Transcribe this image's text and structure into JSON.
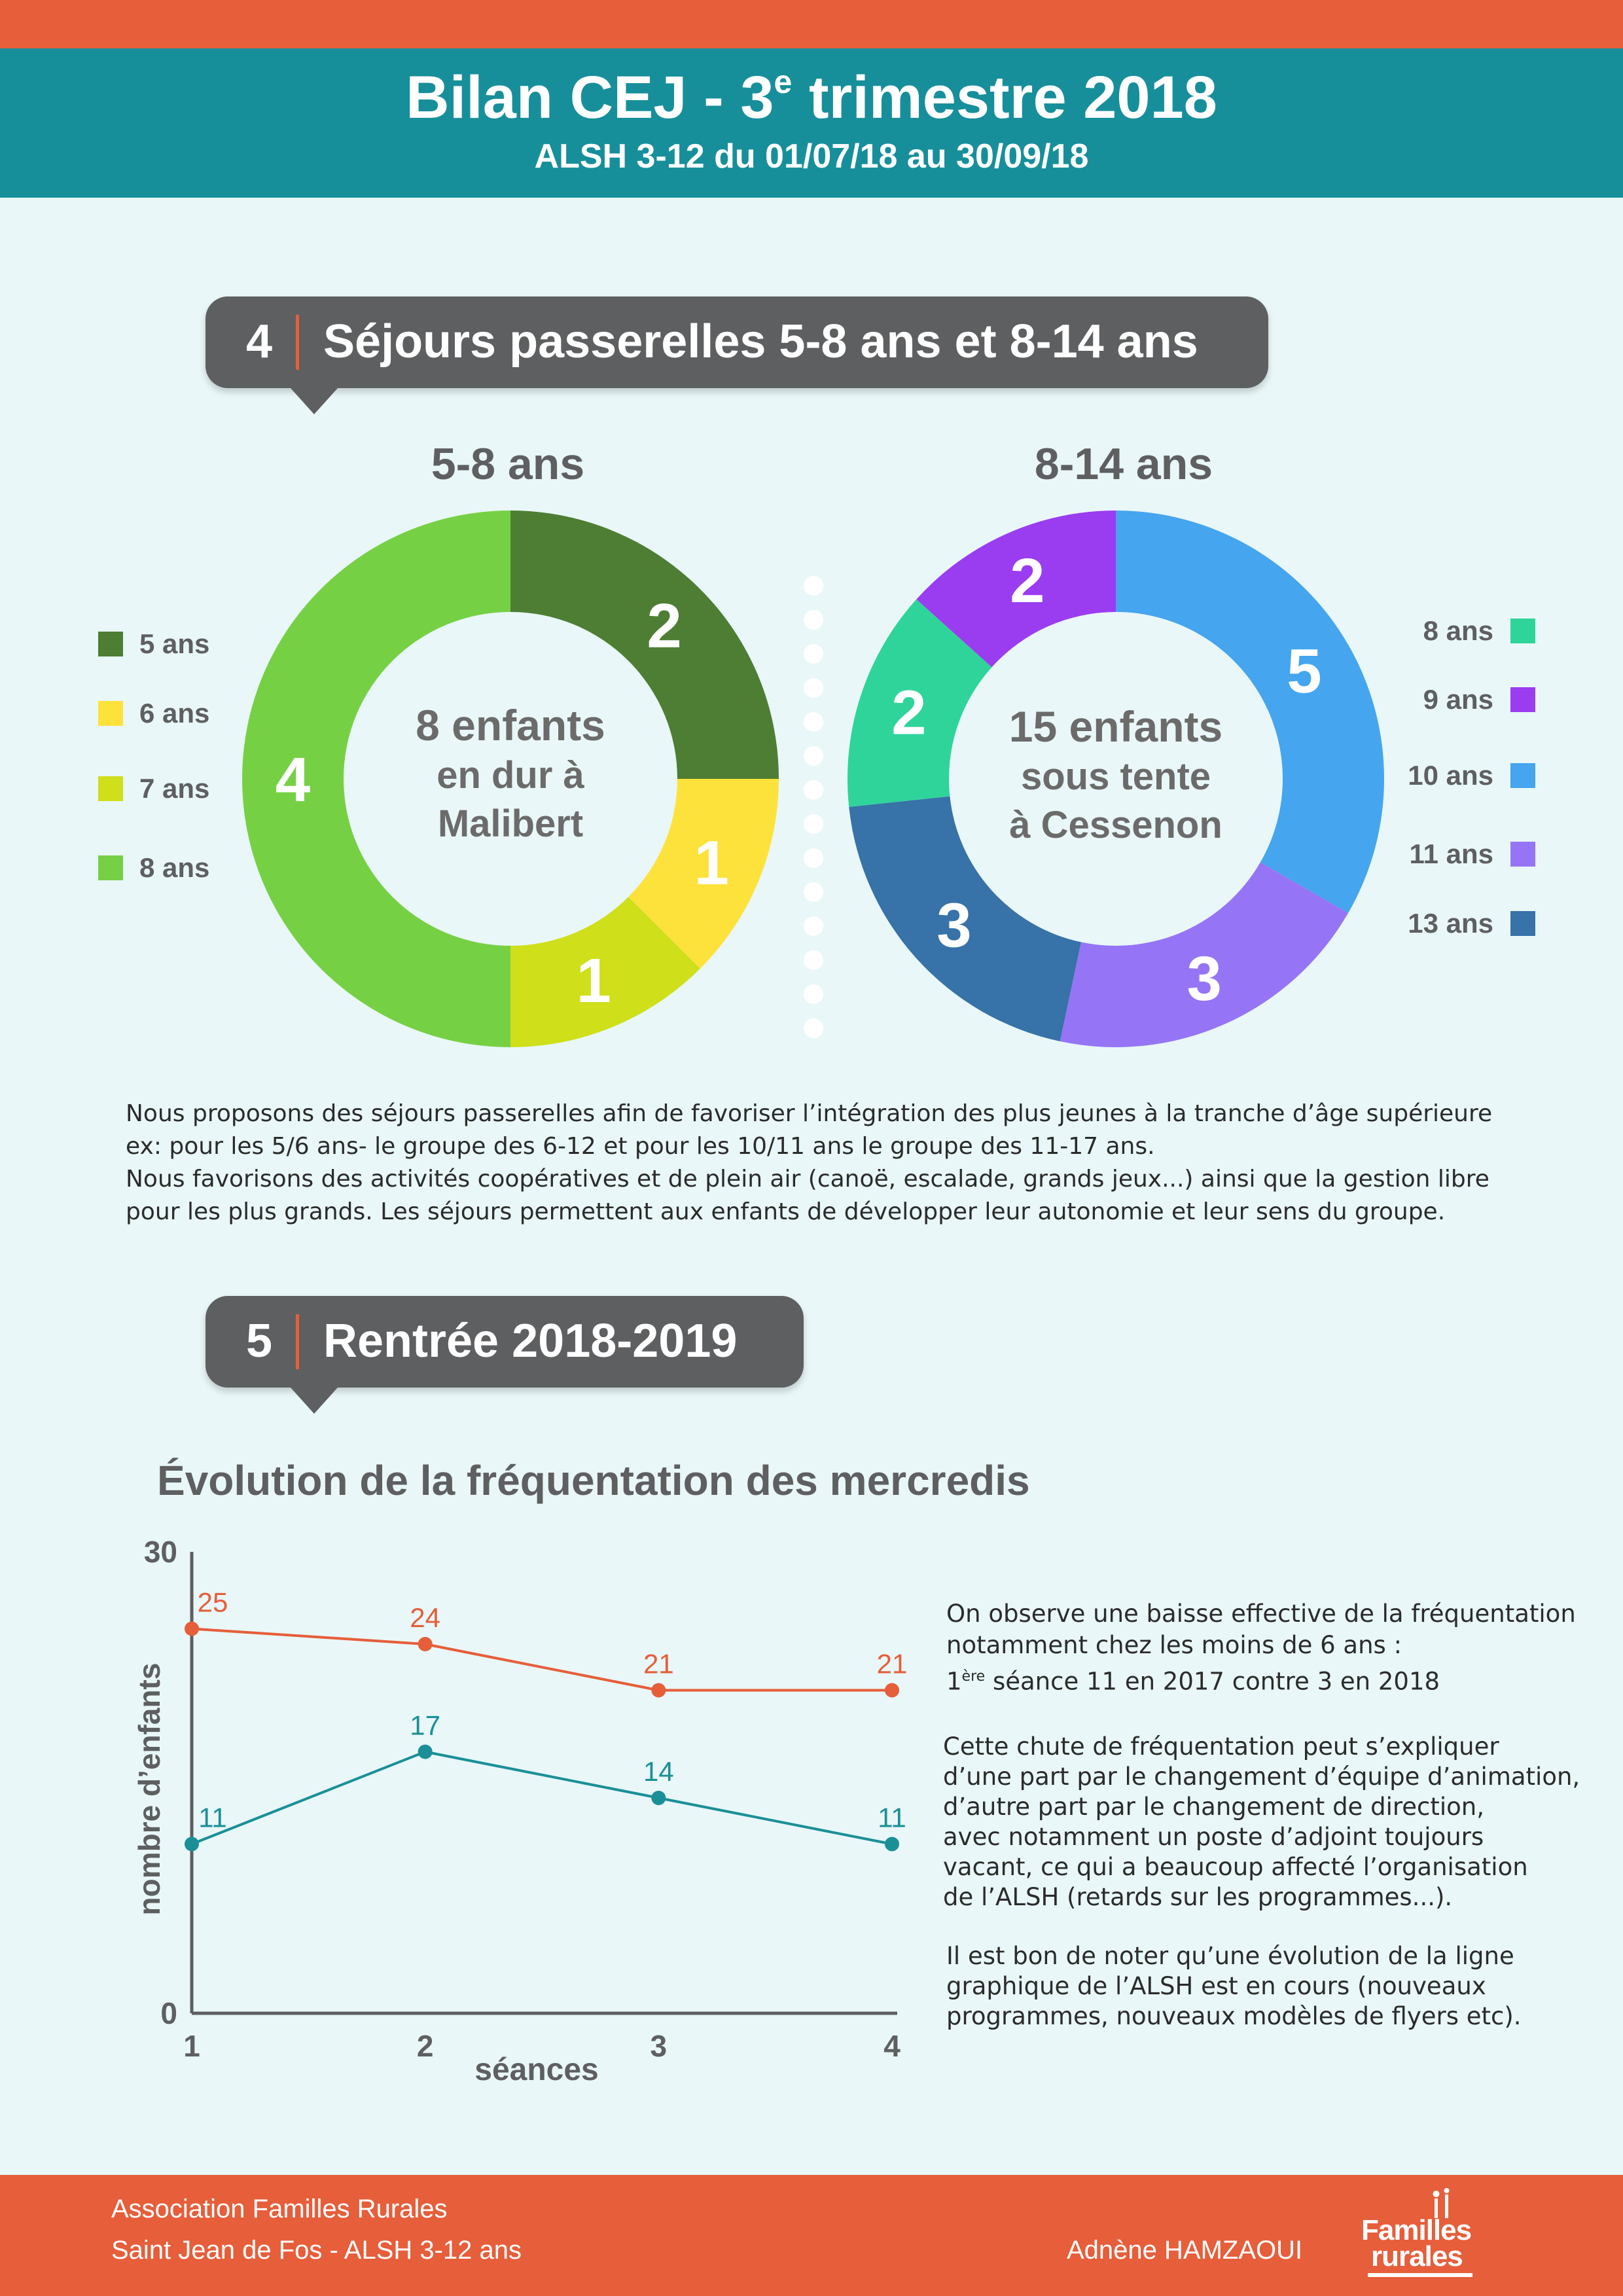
{
  "header": {
    "title_pre": "Bilan CEJ - 3",
    "title_sup": "e",
    "title_post": " trimestre 2018",
    "subtitle": "ALSH 3-12 du 01/07/18 au 30/09/18"
  },
  "section4": {
    "number": "4",
    "title": "Séjours passerelles 5-8 ans et 8-14 ans"
  },
  "section5": {
    "number": "5",
    "title": "Rentrée 2018-2019"
  },
  "donut_left_center": [
    "8 enfants",
    "en dur à",
    "Malibert"
  ],
  "donut_right_center": [
    "15 enfants",
    "sous tente",
    "à Cessenon"
  ],
  "paragraph_sejours": [
    "Nous proposons des séjours passerelles afin de favoriser l’intégration des plus jeunes à la tranche d’âge supérieure",
    "ex: pour les 5/6 ans- le groupe des 6-12 et pour les 10/11 ans le groupe des 11-17 ans.",
    "Nous favorisons des activités coopératives et de plein air (canoë, escalade, grands jeux...) ainsi que la gestion libre",
    "pour les plus grands. Les séjours permettent aux enfants de développer leur autonomie et leur sens du groupe."
  ],
  "right_notes": {
    "p1_line1": "On observe une baisse effective de la fréquentation",
    "p1_line2": "notamment chez les moins de 6 ans :",
    "p1_line3_pre": "1",
    "p1_line3_sup": "ère",
    "p1_line3_post": " séance 11 en 2017 contre 3 en 2018",
    "p2": [
      "Cette chute de fréquentation peut s’expliquer",
      "d’une part par le  changement d’équipe d’animation,",
      "d’autre part par le changement de direction,",
      "avec notamment un poste d’adjoint toujours",
      "vacant, ce qui a beaucoup affecté l’organisation",
      "de l’ALSH (retards sur les programmes...)."
    ],
    "p3": [
      "Il est bon de noter qu’une évolution de la ligne",
      "graphique de l’ALSH est en cours (nouveaux",
      "programmes, nouveaux modèles de flyers etc)."
    ]
  },
  "footer": {
    "line1": "Association Familles Rurales",
    "line2": "Saint Jean de Fos - ALSH 3-12 ans",
    "author": "Adnène HAMZAOUI",
    "logo_line1": "Familles",
    "logo_line2": "rurales"
  },
  "colors": {
    "orange": "#e65e3a",
    "teal": "#178f9b",
    "grey_box": "#5e5f61",
    "background": "#e9f7f8"
  },
  "chart_data": [
    {
      "type": "pie",
      "variant": "donut",
      "title": "5-8 ans",
      "categories": [
        "5 ans",
        "6 ans",
        "7 ans",
        "8 ans"
      ],
      "values": [
        2,
        1,
        1,
        4
      ],
      "colors": [
        "#4d7e34",
        "#fde23c",
        "#cfdf1a",
        "#76d044"
      ],
      "legend_position": "left"
    },
    {
      "type": "pie",
      "variant": "donut",
      "title": "8-14 ans",
      "categories": [
        "8 ans",
        "9 ans",
        "10 ans",
        "11 ans",
        "13 ans"
      ],
      "values": [
        2,
        2,
        5,
        3,
        3
      ],
      "colors": [
        "#2fd49a",
        "#9a3cf0",
        "#45a5ee",
        "#9575f6",
        "#3772a8"
      ],
      "legend_position": "right"
    },
    {
      "type": "line",
      "title": "Évolution de la fréquentation des mercredis",
      "xlabel": "séances",
      "ylabel": "nombre d’enfants",
      "x": [
        1,
        2,
        3,
        4
      ],
      "ylim": [
        0,
        30
      ],
      "y_ticks": [
        0,
        30
      ],
      "series": [
        {
          "values": [
            25,
            24,
            21,
            21
          ],
          "color": "#e65e3a"
        },
        {
          "values": [
            11,
            17,
            14,
            11
          ],
          "color": "#1a8f98"
        }
      ],
      "grid": false
    }
  ]
}
